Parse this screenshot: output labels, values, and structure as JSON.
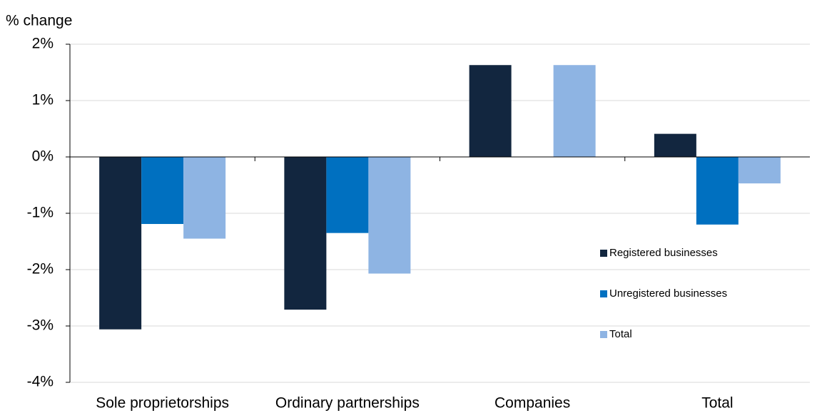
{
  "chart_data": {
    "type": "bar",
    "y_axis_label": "% change",
    "categories": [
      "Sole proprietorships",
      "Ordinary partnerships",
      "Companies",
      "Total"
    ],
    "series": [
      {
        "name": "Registered businesses",
        "color": "#12263f",
        "values": [
          -3.06,
          -2.71,
          1.63,
          0.41
        ]
      },
      {
        "name": "Unregistered businesses",
        "color": "#0070c0",
        "values": [
          -1.19,
          -1.35,
          null,
          -1.2
        ]
      },
      {
        "name": "Total",
        "color": "#8eb4e3",
        "values": [
          -1.45,
          -2.07,
          1.63,
          -0.47
        ]
      }
    ],
    "ylim": [
      -4,
      2
    ],
    "yticks": [
      {
        "value": -4,
        "label": "-4%"
      },
      {
        "value": -3,
        "label": "-3%"
      },
      {
        "value": -2,
        "label": "-2%"
      },
      {
        "value": -1,
        "label": "-1%"
      },
      {
        "value": 0,
        "label": "0%"
      },
      {
        "value": 1,
        "label": "1%"
      },
      {
        "value": 2,
        "label": "2%"
      }
    ],
    "grid": true,
    "legend": "right"
  }
}
